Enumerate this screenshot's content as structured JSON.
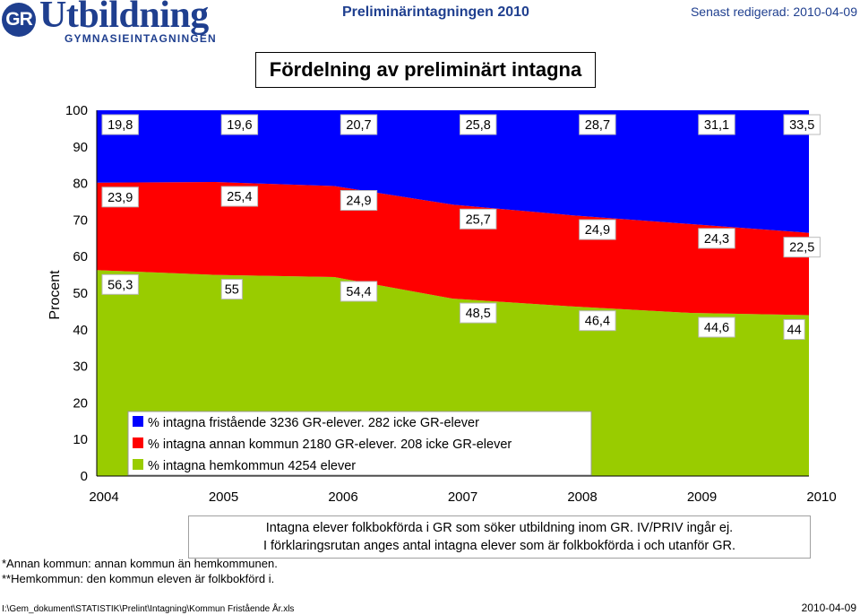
{
  "header": {
    "logo_mark": "GR",
    "logo_word": "Utbildning",
    "logo_sub": "GYMNASIEINTAGNINGEN",
    "center_title": "Preliminärintagningen 2010",
    "edited": "Senast redigerad: 2010-04-09"
  },
  "colors": {
    "blue": "#0000ff",
    "red": "#ff0000",
    "green": "#99cc00",
    "brand": "#1f3f8f"
  },
  "chart_data": {
    "type": "area",
    "stacked": true,
    "title": "Fördelning av preliminärt intagna",
    "ylabel": "Procent",
    "xlabel": "",
    "ylim": [
      0,
      100
    ],
    "y_ticks": [
      "0",
      "10",
      "20",
      "30",
      "40",
      "50",
      "60",
      "70",
      "80",
      "90",
      "100"
    ],
    "categories": [
      "2004",
      "2005",
      "2006",
      "2007",
      "2008",
      "2009",
      "2010"
    ],
    "series": [
      {
        "name": "% intagna hemkommun 4254 elever",
        "color": "#99cc00",
        "values": [
          56.3,
          55,
          54.4,
          48.5,
          46.4,
          44.6,
          44
        ],
        "labels": [
          "56,3",
          "55",
          "54,4",
          "48,5",
          "46,4",
          "44,6",
          "44"
        ]
      },
      {
        "name": "% intagna annan kommun 2180 GR-elever. 208 icke GR-elever",
        "color": "#ff0000",
        "values": [
          23.9,
          25.4,
          24.9,
          25.7,
          24.9,
          24.3,
          22.5
        ],
        "labels": [
          "23,9",
          "25,4",
          "24,9",
          "25,7",
          "24,9",
          "24,3",
          "22,5"
        ]
      },
      {
        "name": "% intagna fristående 3236 GR-elever. 282 icke GR-elever",
        "color": "#0000ff",
        "values": [
          19.8,
          19.6,
          20.7,
          25.8,
          28.7,
          31.1,
          33.5
        ],
        "labels": [
          "19,8",
          "19,6",
          "20,7",
          "25,8",
          "28,7",
          "31,1",
          "33,5"
        ]
      }
    ],
    "legend": {
      "position": "lower-center",
      "order": [
        2,
        1,
        0
      ]
    }
  },
  "notes": {
    "box_line1": "Intagna elever folkbokförda i GR som söker utbildning inom GR. IV/PRIV ingår ej.",
    "box_line2": "I förklaringsrutan anges antal intagna elever som är folkbokförda i och utanför GR.",
    "foot1": "*Annan kommun: annan kommun än hemkommunen.",
    "foot2": "**Hemkommun: den kommun eleven är folkbokförd i.",
    "path": "I:\\Gem_dokument\\STATISTIK\\Prelint\\Intagning\\Kommun Fristående År.xls",
    "date": "2010-04-09"
  }
}
